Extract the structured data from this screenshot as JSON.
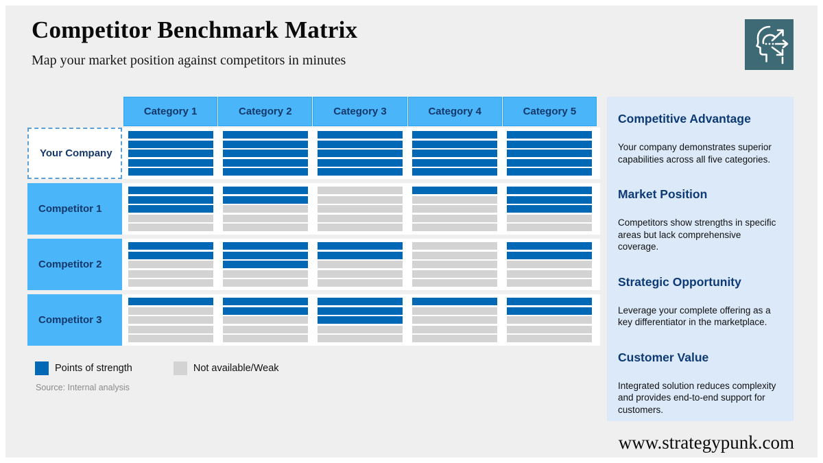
{
  "page": {
    "title": "Competitor Benchmark Matrix",
    "subtitle": "Map your market position against competitors in minutes",
    "source": "Source: Internal analysis",
    "website": "www.strategypunk.com"
  },
  "colors": {
    "strength_blue": "#0068b4",
    "weak_gray": "#d3d3d3",
    "header_blue": "#4ab5f8",
    "navy_text": "#15386b",
    "sidebar_bg": "#dbe9f9",
    "icon_teal": "#3d6a75",
    "canvas_bg": "#efefef"
  },
  "icon": {
    "name": "strategy-head-arrows-icon"
  },
  "matrix": {
    "columns": [
      "Category 1",
      "Category 2",
      "Category 3",
      "Category 4",
      "Category 5"
    ],
    "max_score": 5,
    "rows": [
      {
        "label": "Your Company",
        "type": "self",
        "scores": [
          5,
          5,
          5,
          5,
          5
        ]
      },
      {
        "label": "Competitor 1",
        "type": "competitor",
        "scores": [
          3,
          2,
          0,
          1,
          3
        ]
      },
      {
        "label": "Competitor 2",
        "type": "competitor",
        "scores": [
          2,
          3,
          2,
          0,
          2
        ]
      },
      {
        "label": "Competitor 3",
        "type": "competitor",
        "scores": [
          1,
          2,
          3,
          1,
          2
        ]
      }
    ]
  },
  "legend": [
    {
      "label": "Points of strength",
      "type": "strength"
    },
    {
      "label": "Not available/Weak",
      "type": "weak"
    }
  ],
  "sidebar": {
    "sections": [
      {
        "title": "Competitive Advantage",
        "body": "Your company demonstrates superior capabilities across all five categories."
      },
      {
        "title": "Market Position",
        "body": "Competitors show strengths in specific areas but lack comprehensive coverage."
      },
      {
        "title": "Strategic Opportunity",
        "body": "Leverage your complete offering as a key differentiator in the marketplace."
      },
      {
        "title": "Customer Value",
        "body": "Integrated solution reduces complexity and provides end-to-end support for customers."
      }
    ]
  }
}
